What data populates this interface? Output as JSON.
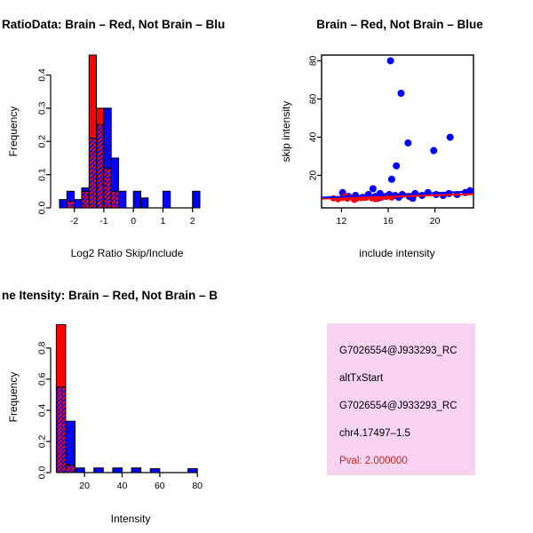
{
  "window": {
    "bg": "#ffffff"
  },
  "chart_data": [
    {
      "id": "hist_ratio",
      "type": "bar",
      "title": "RatioData: Brain – Red, Not Brain – Blu",
      "xlabel": "Log2 Ratio Skip/Include",
      "ylabel": "Frequency",
      "frame": "axes",
      "legend_position": "none",
      "grid": false,
      "xlim": [
        -2.8,
        2.4
      ],
      "ylim": [
        0,
        0.46
      ],
      "bin_width": 0.25,
      "xticks": [
        {
          "v": -2,
          "label": "-2"
        },
        {
          "v": -1,
          "label": "-1"
        },
        {
          "v": 0,
          "label": "0"
        },
        {
          "v": 1,
          "label": "1"
        },
        {
          "v": 2,
          "label": "2"
        }
      ],
      "yticks": [
        {
          "v": 0,
          "label": "0.0"
        },
        {
          "v": 0.1,
          "label": "0.1"
        },
        {
          "v": 0.2,
          "label": "0.2"
        },
        {
          "v": 0.3,
          "label": "0.3"
        },
        {
          "v": 0.4,
          "label": "0.4"
        }
      ],
      "series": [
        {
          "name": "Not Brain",
          "color": "#0000ff",
          "bars": [
            {
              "x": -2.5,
              "h": 0.025
            },
            {
              "x": -2.25,
              "h": 0.05
            },
            {
              "x": -2.0,
              "h": 0.025
            },
            {
              "x": -1.75,
              "h": 0.06
            },
            {
              "x": -1.5,
              "h": 0.21
            },
            {
              "x": -1.25,
              "h": 0.25
            },
            {
              "x": -1.0,
              "h": 0.3
            },
            {
              "x": -0.75,
              "h": 0.15
            },
            {
              "x": -0.5,
              "h": 0.05
            },
            {
              "x": 0.0,
              "h": 0.05
            },
            {
              "x": 0.25,
              "h": 0.03
            },
            {
              "x": 1.0,
              "h": 0.05
            },
            {
              "x": 2.0,
              "h": 0.05
            }
          ]
        },
        {
          "name": "Brain",
          "color": "#ff0000",
          "bars": [
            {
              "x": -2.25,
              "h": 0.02
            },
            {
              "x": -1.75,
              "h": 0.05
            },
            {
              "x": -1.5,
              "h": 0.46
            },
            {
              "x": -1.25,
              "h": 0.3
            },
            {
              "x": -1.0,
              "h": 0.12
            },
            {
              "x": -0.75,
              "h": 0.05
            }
          ]
        }
      ]
    },
    {
      "id": "scatter",
      "type": "scatter",
      "title": "Brain – Red, Not Brain – Blue",
      "xlabel": "include intensity",
      "ylabel": "skip intensity",
      "frame": "box",
      "legend_position": "none",
      "grid": false,
      "xlim": [
        10.3,
        23.3
      ],
      "ylim": [
        3,
        83
      ],
      "xticks": [
        {
          "v": 12,
          "label": "12"
        },
        {
          "v": 16,
          "label": "16"
        },
        {
          "v": 20,
          "label": "20"
        }
      ],
      "yticks": [
        {
          "v": 20,
          "label": "20"
        },
        {
          "v": 40,
          "label": "40"
        },
        {
          "v": 60,
          "label": "60"
        },
        {
          "v": 80,
          "label": "80"
        }
      ],
      "series": [
        {
          "name": "Not Brain",
          "color": "#0000ff",
          "r": 4,
          "points": [
            [
              16.2,
              80
            ],
            [
              17.1,
              63
            ],
            [
              21.3,
              40
            ],
            [
              17.7,
              37
            ],
            [
              19.9,
              33
            ],
            [
              16.7,
              25
            ],
            [
              16.3,
              18
            ],
            [
              14.7,
              13
            ],
            [
              12.1,
              11
            ],
            [
              12.6,
              9
            ],
            [
              13.2,
              9.5
            ],
            [
              13.8,
              8.5
            ],
            [
              14.3,
              10
            ],
            [
              14.9,
              9
            ],
            [
              15.3,
              10.5
            ],
            [
              15.8,
              9
            ],
            [
              16.1,
              10
            ],
            [
              16.6,
              9.5
            ],
            [
              17.2,
              10
            ],
            [
              17.8,
              9
            ],
            [
              18.3,
              10.5
            ],
            [
              18.9,
              9.5
            ],
            [
              19.4,
              11
            ],
            [
              20.1,
              10
            ],
            [
              20.7,
              9.5
            ],
            [
              21.2,
              10.5
            ],
            [
              21.9,
              10
            ],
            [
              22.6,
              11
            ],
            [
              23.0,
              12
            ],
            [
              15.1,
              8
            ],
            [
              16.9,
              8.5
            ],
            [
              18.1,
              8
            ]
          ]
        },
        {
          "name": "Brain",
          "color": "#ff0000",
          "r": 3.5,
          "points": [
            [
              11.3,
              8
            ],
            [
              11.7,
              7.5
            ],
            [
              12.1,
              8.2
            ],
            [
              12.5,
              7.8
            ],
            [
              12.9,
              8.4
            ],
            [
              13.3,
              7.9
            ],
            [
              13.7,
              8.1
            ],
            [
              14.1,
              8.3
            ],
            [
              14.6,
              8.0
            ],
            [
              15.0,
              8.6
            ],
            [
              15.4,
              8.2
            ],
            [
              15.9,
              8.8
            ],
            [
              16.3,
              8.4
            ],
            [
              12.3,
              9.0
            ],
            [
              13.1,
              7.2
            ],
            [
              14.9,
              7.6
            ]
          ]
        }
      ],
      "lines": [
        {
          "name": "brain-fit",
          "color": "#ff0000",
          "x": [
            10.3,
            23.3
          ],
          "y": [
            7.8,
            10.2
          ]
        },
        {
          "name": "notbrain-fit",
          "color": "#0000ff",
          "x": [
            10.3,
            23.3
          ],
          "y": [
            8.4,
            11.6
          ]
        }
      ]
    },
    {
      "id": "hist_intensity",
      "type": "bar",
      "title": "ne Itensity: Brain – Red, Not Brain – B",
      "xlabel": "Intensity",
      "ylabel": "Frequency",
      "frame": "axes",
      "legend_position": "none",
      "grid": false,
      "xlim": [
        2,
        87
      ],
      "ylim": [
        0,
        0.97
      ],
      "bin_width": 5,
      "xticks": [
        {
          "v": 20,
          "label": "20"
        },
        {
          "v": 40,
          "label": "40"
        },
        {
          "v": 60,
          "label": "60"
        },
        {
          "v": 80,
          "label": "80"
        }
      ],
      "yticks": [
        {
          "v": 0,
          "label": "0.0"
        },
        {
          "v": 0.2,
          "label": "0.2"
        },
        {
          "v": 0.4,
          "label": "0.4"
        },
        {
          "v": 0.6,
          "label": "0.6"
        },
        {
          "v": 0.8,
          "label": "0.8"
        }
      ],
      "series": [
        {
          "name": "Not Brain",
          "color": "#0000ff",
          "bars": [
            {
              "x": 5,
              "h": 0.55
            },
            {
              "x": 10,
              "h": 0.33
            },
            {
              "x": 15,
              "h": 0.03
            },
            {
              "x": 25,
              "h": 0.03
            },
            {
              "x": 35,
              "h": 0.03
            },
            {
              "x": 45,
              "h": 0.03
            },
            {
              "x": 55,
              "h": 0.025
            },
            {
              "x": 75,
              "h": 0.025
            }
          ]
        },
        {
          "name": "Brain",
          "color": "#ff0000",
          "bars": [
            {
              "x": 5,
              "h": 0.95
            },
            {
              "x": 10,
              "h": 0.05
            }
          ]
        }
      ]
    }
  ],
  "info_box": {
    "bg": "#f6d3ee",
    "lines": [
      {
        "text": "G7026554@J933293_RC",
        "color": "#000000"
      },
      {
        "text": "altTxStart",
        "color": "#000000"
      },
      {
        "text": "G7026554@J933293_RC",
        "color": "#000000"
      },
      {
        "text": "chr4.17497–1.5",
        "color": "#000000"
      },
      {
        "text": "Pval: 2.000000",
        "color": "#c22828"
      }
    ]
  }
}
